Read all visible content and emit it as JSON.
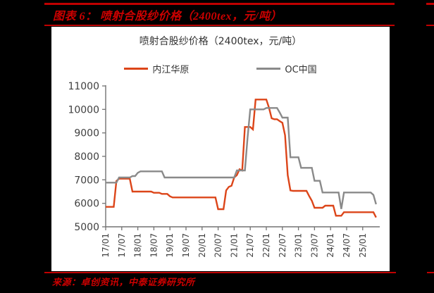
{
  "header": {
    "figure_title": "图表 6：  喷射合股纱价格（2400tex，元/吨）"
  },
  "footer": {
    "source": "来源：卓创资讯，中泰证券研究所"
  },
  "colors": {
    "rule_red": "#C00000",
    "header_text_red": "#CC0000",
    "background": "#000000",
    "panel": "#FFFFFF",
    "series_red": "#DC4519",
    "series_gray": "#8A8A8A",
    "axis_line": "#737373",
    "axis_text": "#404040",
    "title_text": "#333333"
  },
  "chart_data": {
    "type": "line",
    "title": "喷射合股纱价格（2400tex，元/吨）",
    "xlabel": "",
    "ylabel": "",
    "ylim": [
      5000,
      11000
    ],
    "y_ticks": [
      11000,
      10000,
      9000,
      8000,
      7000,
      6000,
      5000
    ],
    "x_tick_labels": [
      "17/01",
      "17/07",
      "18/01",
      "18/07",
      "19/01",
      "19/07",
      "20/01",
      "20/07",
      "21/01",
      "21/07",
      "22/01",
      "22/07",
      "23/01",
      "23/07",
      "24/01",
      "24/07",
      "25/01"
    ],
    "x_tick_interval_months": 6,
    "x_start_month": "2017-01",
    "x_end_month": "2025-06",
    "grid": false,
    "legend_position": "top",
    "series": [
      {
        "name": "内江华原",
        "color": "#DC4519",
        "monthly_values": [
          5850,
          5850,
          5850,
          5850,
          6950,
          7050,
          7050,
          7050,
          7050,
          7050,
          6500,
          6500,
          6500,
          6500,
          6500,
          6500,
          6500,
          6500,
          6450,
          6450,
          6450,
          6400,
          6400,
          6400,
          6300,
          6250,
          6250,
          6250,
          6250,
          6250,
          6250,
          6250,
          6250,
          6250,
          6250,
          6250,
          6250,
          6250,
          6250,
          6250,
          6250,
          6250,
          5750,
          5750,
          5750,
          6550,
          6700,
          6750,
          7100,
          7200,
          7450,
          7400,
          9250,
          9250,
          9250,
          9150,
          10420,
          10420,
          10420,
          10420,
          10420,
          10070,
          9620,
          9580,
          9580,
          9500,
          9430,
          8900,
          7200,
          6550,
          6530,
          6530,
          6530,
          6530,
          6530,
          6530,
          6310,
          6110,
          5810,
          5810,
          5810,
          5810,
          5900,
          5900,
          5900,
          5900,
          5470,
          5470,
          5470,
          5620,
          5620,
          5620,
          5620,
          5620,
          5620,
          5620,
          5620,
          5620,
          5620,
          5620,
          5620,
          5400
        ]
      },
      {
        "name": "OC中国",
        "color": "#8A8A8A",
        "monthly_values": [
          6880,
          6880,
          6880,
          6880,
          6880,
          7100,
          7100,
          7100,
          7100,
          7100,
          7160,
          7160,
          7300,
          7360,
          7360,
          7360,
          7360,
          7360,
          7360,
          7360,
          7360,
          7360,
          7100,
          7100,
          7100,
          7100,
          7100,
          7100,
          7100,
          7100,
          7100,
          7100,
          7100,
          7100,
          7100,
          7100,
          7100,
          7100,
          7100,
          7100,
          7100,
          7100,
          7100,
          7100,
          7100,
          7100,
          7100,
          7100,
          7100,
          7400,
          7400,
          7400,
          7400,
          8800,
          10000,
          10000,
          10000,
          10000,
          10000,
          10000,
          10060,
          10060,
          10060,
          10060,
          10060,
          9870,
          9650,
          9650,
          9650,
          7960,
          7960,
          7960,
          7960,
          7510,
          7510,
          7510,
          7510,
          7510,
          6960,
          6960,
          6960,
          6460,
          6460,
          6460,
          6460,
          6460,
          6460,
          6460,
          5760,
          6460,
          6460,
          6460,
          6460,
          6460,
          6460,
          6460,
          6460,
          6460,
          6460,
          6460,
          6360,
          5960
        ]
      }
    ]
  }
}
